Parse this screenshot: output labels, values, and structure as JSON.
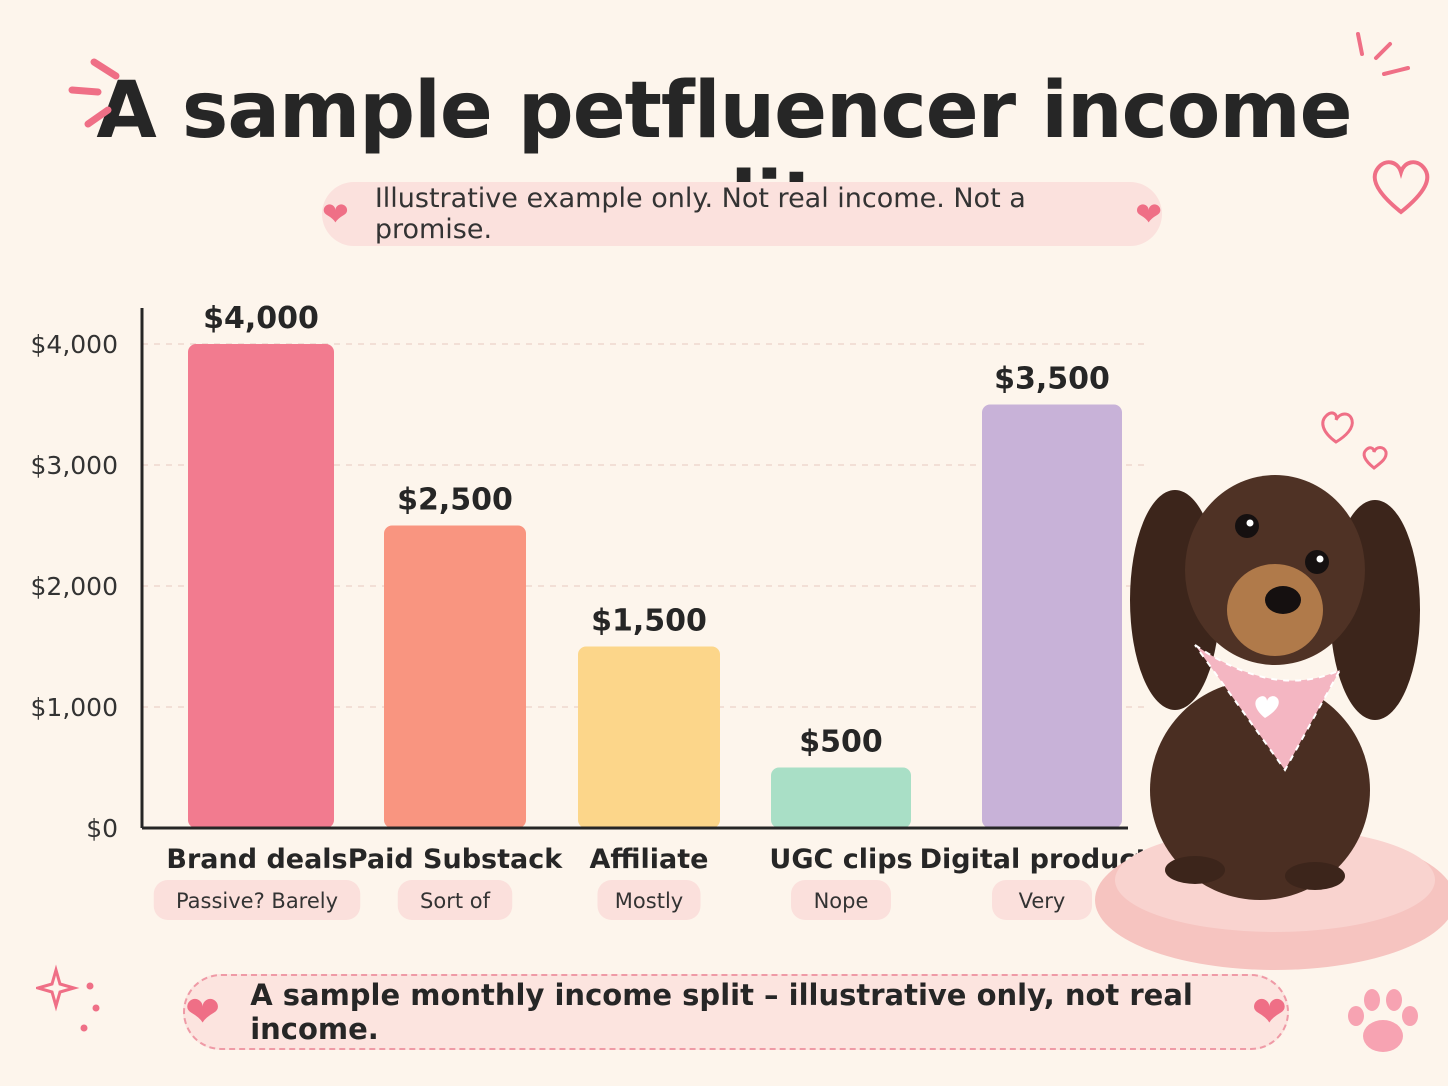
{
  "title": "A sample petfluencer income split",
  "subtitle": "Illustrative example only. Not real income. Not a promise.",
  "footer": "A sample monthly income split – illustrative only, not real income.",
  "colors": {
    "background": "#fdf5ec",
    "brand_deals": "#f27b8f",
    "paid_substack": "#f99580",
    "affiliate": "#fcd68a",
    "ugc_clips": "#a9dfc6",
    "digital_products": "#c8b2d8",
    "accent_heart": "#ef6f86"
  },
  "icons": [
    "heart-icon",
    "sparkle-icon",
    "paw-icon",
    "dog-illustration"
  ],
  "chart_data": {
    "type": "bar",
    "categories": [
      "Brand deals",
      "Paid Substack",
      "Affiliate",
      "UGC clips",
      "Digital products"
    ],
    "values": [
      4000,
      2500,
      1500,
      500,
      3500
    ],
    "value_labels": [
      "$4,000",
      "$2,500",
      "$1,500",
      "$500",
      "$3,500"
    ],
    "passive_labels": [
      "Passive? Barely",
      "Sort of",
      "Mostly",
      "Nope",
      "Very"
    ],
    "yticks": [
      0,
      1000,
      2000,
      3000,
      4000
    ],
    "ytick_labels": [
      "$0",
      "$1,000",
      "$2,000",
      "$3,000",
      "$4,000"
    ],
    "ylim": [
      0,
      4000
    ],
    "grid": true,
    "title": "A sample petfluencer income split",
    "xlabel": "",
    "ylabel": ""
  }
}
